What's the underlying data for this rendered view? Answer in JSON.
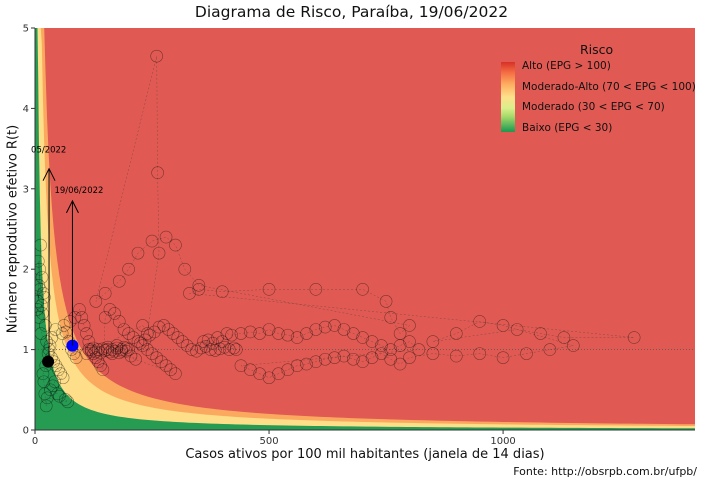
{
  "chart_data": {
    "type": "scatter",
    "title": "Diagrama de Risco, Paraíba, 19/06/2022",
    "xlabel": "Casos ativos por 100 mil habitantes (janela de 14 dias)",
    "ylabel": "Número reprodutivo efetivo R(t)",
    "xlim": [
      0,
      1410
    ],
    "ylim": [
      0,
      5
    ],
    "x_ticks": [
      0,
      500,
      1000
    ],
    "y_ticks": [
      0,
      1,
      2,
      3,
      4,
      5
    ],
    "reference_line_y": 1,
    "caption": "Fonte: http://obsrpb.com.br/ufpb/",
    "legend": {
      "title": "Risco",
      "position": "top-right",
      "entries": [
        "Alto (EPG > 100)",
        "Moderado-Alto (70 < EPG < 100)",
        "Moderado (30 < EPG < 70)",
        "Baixo (EPG < 30)"
      ]
    },
    "colors": {
      "high": "#e05a53",
      "moderate_high": "#fdae61",
      "moderate": "#fee08b",
      "low": "#1a9850",
      "current_point": "#0000ff",
      "previous_point": "#000000"
    },
    "annotations": [
      {
        "label": "05/2022",
        "x": 30,
        "y": 3.25,
        "text_y": 3.45
      },
      {
        "label": "19/06/2022",
        "x": 80,
        "y": 2.85,
        "text_y": 2.95
      }
    ],
    "highlight_points": [
      {
        "name": "current",
        "x": 80,
        "y": 1.05
      },
      {
        "name": "previous",
        "x": 28,
        "y": 0.85
      }
    ],
    "series": [
      {
        "points": [
          [
            5,
            1.5
          ],
          [
            8,
            1.8
          ],
          [
            10,
            2.0
          ],
          [
            12,
            2.3
          ],
          [
            6,
            1.6
          ],
          [
            15,
            1.9
          ],
          [
            18,
            1.7
          ],
          [
            9,
            1.4
          ],
          [
            14,
            1.55
          ],
          [
            20,
            1.65
          ],
          [
            11,
            1.75
          ],
          [
            7,
            2.1
          ],
          [
            16,
            1.45
          ],
          [
            22,
            1.3
          ],
          [
            13,
            1.2
          ],
          [
            25,
            1.1
          ],
          [
            30,
            1.0
          ],
          [
            35,
            0.9
          ],
          [
            40,
            0.85
          ],
          [
            28,
            0.95
          ],
          [
            45,
            0.8
          ],
          [
            50,
            0.75
          ],
          [
            55,
            0.7
          ],
          [
            60,
            0.65
          ],
          [
            42,
            0.6
          ],
          [
            38,
            0.55
          ],
          [
            33,
            0.5
          ],
          [
            48,
            0.45
          ],
          [
            52,
            0.42
          ],
          [
            65,
            0.38
          ],
          [
            70,
            0.35
          ],
          [
            26,
            0.4
          ],
          [
            24,
            0.3
          ],
          [
            21,
            0.45
          ],
          [
            19,
            0.6
          ],
          [
            17,
            0.7
          ],
          [
            23,
            0.8
          ],
          [
            32,
            1.05
          ],
          [
            36,
            1.15
          ],
          [
            44,
            1.25
          ],
          [
            58,
            1.2
          ],
          [
            62,
            1.3
          ],
          [
            66,
            1.22
          ],
          [
            72,
            1.1
          ],
          [
            78,
            1.0
          ],
          [
            83,
            0.95
          ],
          [
            88,
            0.9
          ],
          [
            75,
            1.35
          ],
          [
            85,
            1.4
          ],
          [
            95,
            1.5
          ],
          [
            100,
            1.4
          ],
          [
            105,
            1.3
          ],
          [
            110,
            1.2
          ],
          [
            115,
            1.1
          ],
          [
            120,
            1.0
          ],
          [
            125,
            0.95
          ],
          [
            130,
            0.9
          ],
          [
            135,
            0.85
          ],
          [
            140,
            0.8
          ],
          [
            145,
            0.75
          ],
          [
            150,
            1.4
          ],
          [
            160,
            1.5
          ],
          [
            170,
            1.45
          ],
          [
            180,
            1.35
          ],
          [
            190,
            1.25
          ],
          [
            200,
            1.2
          ],
          [
            210,
            1.15
          ],
          [
            220,
            1.1
          ],
          [
            230,
            1.05
          ],
          [
            240,
            1.0
          ],
          [
            250,
            0.95
          ],
          [
            260,
            0.9
          ],
          [
            270,
            0.85
          ],
          [
            280,
            0.8
          ],
          [
            290,
            0.75
          ],
          [
            300,
            0.7
          ],
          [
            155,
            1.0
          ],
          [
            165,
            0.95
          ],
          [
            175,
            1.05
          ],
          [
            185,
            0.98
          ],
          [
            195,
            1.02
          ],
          [
            205,
            0.92
          ],
          [
            215,
            0.88
          ],
          [
            225,
            1.08
          ],
          [
            235,
            1.12
          ],
          [
            245,
            1.18
          ],
          [
            255,
            1.22
          ],
          [
            265,
            1.28
          ],
          [
            275,
            1.3
          ],
          [
            285,
            1.25
          ],
          [
            295,
            1.2
          ],
          [
            305,
            1.15
          ],
          [
            315,
            1.1
          ],
          [
            325,
            1.05
          ],
          [
            335,
            1.0
          ],
          [
            345,
            0.98
          ],
          [
            355,
            1.02
          ],
          [
            365,
            1.04
          ],
          [
            375,
            1.0
          ],
          [
            385,
            0.99
          ],
          [
            395,
            1.01
          ],
          [
            405,
            1.03
          ],
          [
            415,
            1.0
          ],
          [
            425,
            1.02
          ],
          [
            430,
            1.0
          ],
          [
            360,
            1.1
          ],
          [
            370,
            1.12
          ],
          [
            380,
            1.08
          ],
          [
            390,
            1.15
          ],
          [
            400,
            1.1
          ],
          [
            410,
            1.2
          ],
          [
            420,
            1.18
          ],
          [
            440,
            1.2
          ],
          [
            460,
            1.22
          ],
          [
            480,
            1.2
          ],
          [
            500,
            1.25
          ],
          [
            520,
            1.2
          ],
          [
            540,
            1.18
          ],
          [
            560,
            1.15
          ],
          [
            580,
            1.2
          ],
          [
            600,
            1.25
          ],
          [
            620,
            1.28
          ],
          [
            640,
            1.3
          ],
          [
            660,
            1.25
          ],
          [
            680,
            1.2
          ],
          [
            700,
            1.15
          ],
          [
            720,
            1.1
          ],
          [
            740,
            1.05
          ],
          [
            760,
            1.0
          ],
          [
            780,
            1.05
          ],
          [
            800,
            1.1
          ],
          [
            820,
            1.0
          ],
          [
            440,
            0.8
          ],
          [
            460,
            0.75
          ],
          [
            480,
            0.7
          ],
          [
            500,
            0.65
          ],
          [
            520,
            0.7
          ],
          [
            540,
            0.75
          ],
          [
            560,
            0.8
          ],
          [
            580,
            0.82
          ],
          [
            600,
            0.85
          ],
          [
            620,
            0.88
          ],
          [
            640,
            0.9
          ],
          [
            660,
            0.92
          ],
          [
            680,
            0.88
          ],
          [
            700,
            0.85
          ],
          [
            720,
            0.9
          ],
          [
            740,
            0.95
          ],
          [
            760,
            0.88
          ],
          [
            780,
            0.82
          ],
          [
            800,
            0.9
          ],
          [
            850,
            0.95
          ],
          [
            900,
            0.92
          ],
          [
            950,
            0.95
          ],
          [
            1000,
            0.9
          ],
          [
            1050,
            0.95
          ],
          [
            1100,
            1.0
          ],
          [
            1150,
            1.05
          ],
          [
            1000,
            1.3
          ],
          [
            950,
            1.35
          ],
          [
            900,
            1.2
          ],
          [
            850,
            1.1
          ],
          [
            1030,
            1.25
          ],
          [
            1080,
            1.2
          ],
          [
            1130,
            1.15
          ],
          [
            1280,
            1.15
          ],
          [
            330,
            1.7
          ],
          [
            350,
            1.75
          ],
          [
            400,
            1.72
          ],
          [
            500,
            1.75
          ],
          [
            600,
            1.75
          ],
          [
            700,
            1.75
          ],
          [
            750,
            1.6
          ],
          [
            760,
            1.4
          ],
          [
            780,
            1.2
          ],
          [
            800,
            1.3
          ],
          [
            350,
            1.8
          ],
          [
            320,
            2.0
          ],
          [
            300,
            2.3
          ],
          [
            280,
            2.4
          ],
          [
            250,
            2.35
          ],
          [
            220,
            2.2
          ],
          [
            200,
            2.0
          ],
          [
            180,
            1.85
          ],
          [
            150,
            1.7
          ],
          [
            130,
            1.6
          ],
          [
            260,
            4.65
          ],
          [
            262,
            3.2
          ],
          [
            265,
            2.2
          ],
          [
            240,
            1.2
          ],
          [
            230,
            1.3
          ],
          [
            110,
            0.95
          ],
          [
            115,
            1.0
          ],
          [
            120,
            0.98
          ],
          [
            125,
            1.02
          ],
          [
            130,
            0.97
          ],
          [
            135,
            1.0
          ],
          [
            140,
            0.96
          ],
          [
            145,
            1.01
          ],
          [
            150,
            0.99
          ],
          [
            155,
            1.03
          ],
          [
            160,
            0.97
          ],
          [
            165,
            1.0
          ],
          [
            170,
            0.98
          ],
          [
            175,
            1.02
          ],
          [
            180,
            0.96
          ],
          [
            185,
            1.0
          ],
          [
            190,
            1.03
          ],
          [
            195,
            0.98
          ],
          [
            200,
            1.0
          ]
        ]
      }
    ]
  }
}
